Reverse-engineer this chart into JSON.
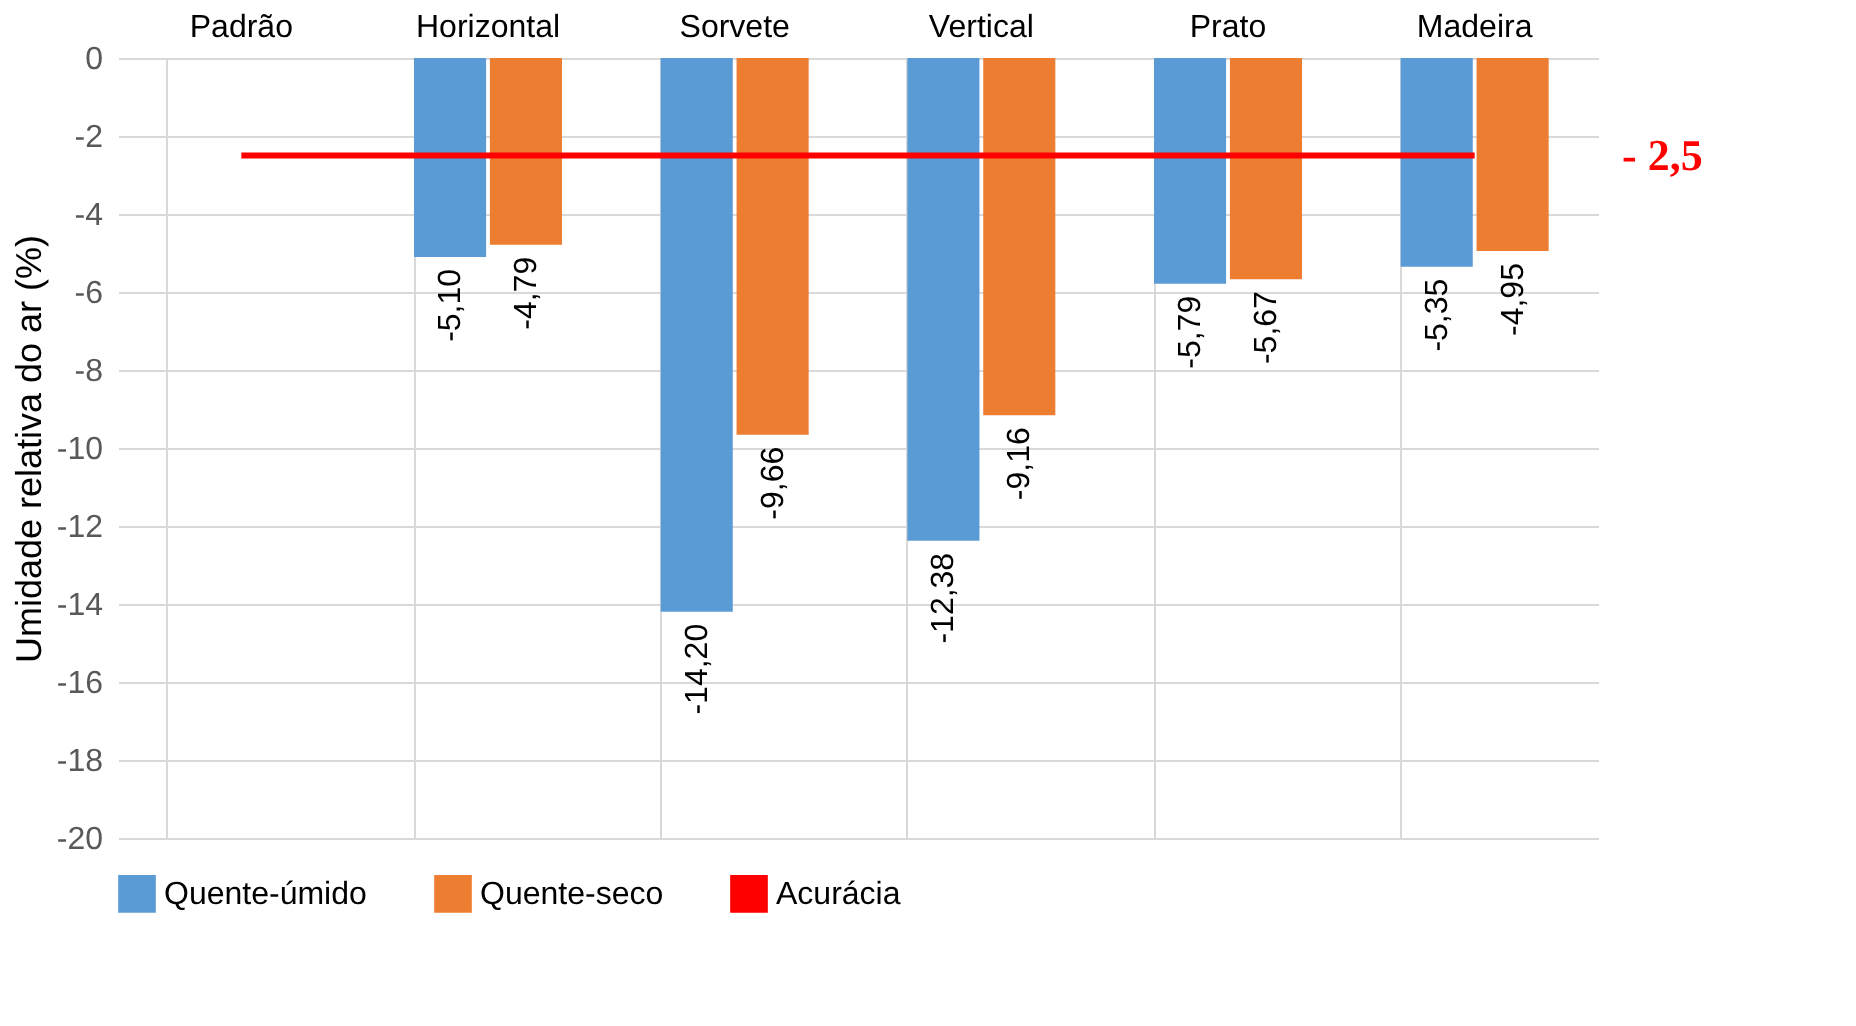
{
  "chart_data": {
    "type": "bar",
    "ylabel": "Umidade relativa do ar (%)",
    "categories": [
      "Padrão",
      "Horizontal",
      "Sorvete",
      "Vertical",
      "Prato",
      "Madeira"
    ],
    "series": [
      {
        "name": "Quente-úmido",
        "color": "#5b9bd5",
        "values": [
          null,
          -5.1,
          -14.2,
          -12.38,
          -5.79,
          -5.35
        ],
        "value_labels": [
          null,
          "-5,10",
          "-14,20",
          "-12,38",
          "-5,79",
          "-5,35"
        ]
      },
      {
        "name": "Quente-seco",
        "color": "#ed7d31",
        "values": [
          null,
          -4.79,
          -9.66,
          -9.16,
          -5.67,
          -4.95
        ],
        "value_labels": [
          null,
          "-4,79",
          "-9,66",
          "-9,16",
          "-5,67",
          "-4,95"
        ]
      },
      {
        "name": "Acurácia",
        "type": "line",
        "color": "#ff0000",
        "values": [
          -2.5,
          -2.5,
          -2.5,
          -2.5,
          -2.5,
          -2.5
        ]
      }
    ],
    "annotations": [
      "- 2,5"
    ],
    "ylim": [
      -20,
      0
    ],
    "yticks": [
      -20,
      -18,
      -16,
      -14,
      -12,
      -10,
      -8,
      -6,
      -4,
      -2,
      0
    ],
    "grid": true,
    "legend": "bottom"
  }
}
